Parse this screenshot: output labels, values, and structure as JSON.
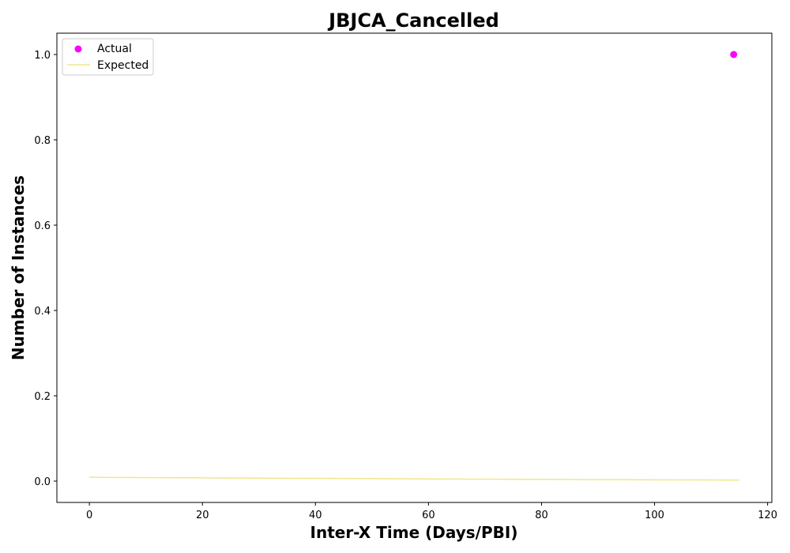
{
  "chart_data": {
    "type": "scatter",
    "title": "JBJCA_Cancelled",
    "xlabel": "Inter-X Time (Days/PBI)",
    "ylabel": "Number of Instances",
    "xlim": [
      -5.75,
      120.75
    ],
    "ylim": [
      -0.05,
      1.05
    ],
    "xticks": [
      0,
      20,
      40,
      60,
      80,
      100,
      120
    ],
    "yticks": [
      0.0,
      0.2,
      0.4,
      0.6,
      0.8,
      1.0
    ],
    "xtick_labels": [
      "0",
      "20",
      "40",
      "60",
      "80",
      "100",
      "120"
    ],
    "ytick_labels": [
      "0.0",
      "0.2",
      "0.4",
      "0.6",
      "0.8",
      "1.0"
    ],
    "grid": false,
    "legend_position": "top-left",
    "series": [
      {
        "name": "Actual",
        "kind": "scatter",
        "color": "#ff00ff",
        "points": [
          {
            "x": 114,
            "y": 1.0
          }
        ]
      },
      {
        "name": "Expected",
        "kind": "line",
        "color": "#f0e68c",
        "points": [
          {
            "x": 0,
            "y": 0.009
          },
          {
            "x": 20,
            "y": 0.0077
          },
          {
            "x": 40,
            "y": 0.0064
          },
          {
            "x": 60,
            "y": 0.0052
          },
          {
            "x": 80,
            "y": 0.0041
          },
          {
            "x": 100,
            "y": 0.0031
          },
          {
            "x": 115,
            "y": 0.0024
          }
        ]
      }
    ]
  }
}
